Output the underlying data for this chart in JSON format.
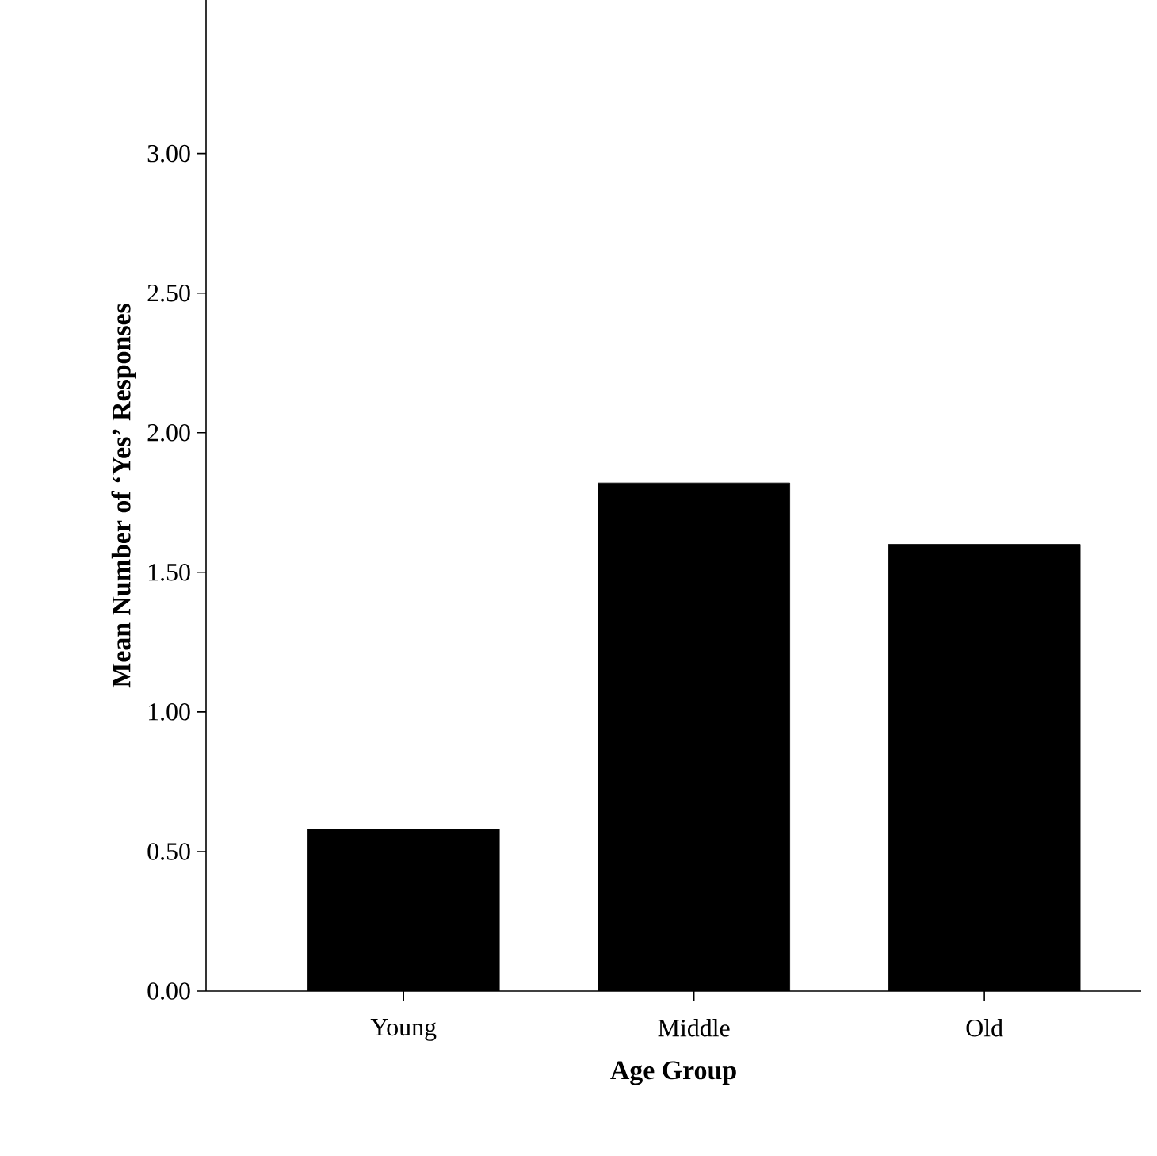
{
  "chart_data": {
    "type": "bar",
    "xlabel": "Age Group",
    "ylabel": "Mean Number of ‘Yes’ Responses",
    "categories": [
      "Young",
      "Middle",
      "Old"
    ],
    "values": [
      0.58,
      1.82,
      1.6
    ],
    "color": "#000000",
    "ylim": [
      0,
      3.55
    ],
    "yticks": [
      {
        "value": 0,
        "label": "0.00"
      },
      {
        "value": 0.5,
        "label": "0.50"
      },
      {
        "value": 1,
        "label": "1.00"
      },
      {
        "value": 1.5,
        "label": "1.50"
      },
      {
        "value": 2,
        "label": "2.00"
      },
      {
        "value": 2.5,
        "label": "2.50"
      },
      {
        "value": 3,
        "label": "3.00"
      }
    ]
  }
}
